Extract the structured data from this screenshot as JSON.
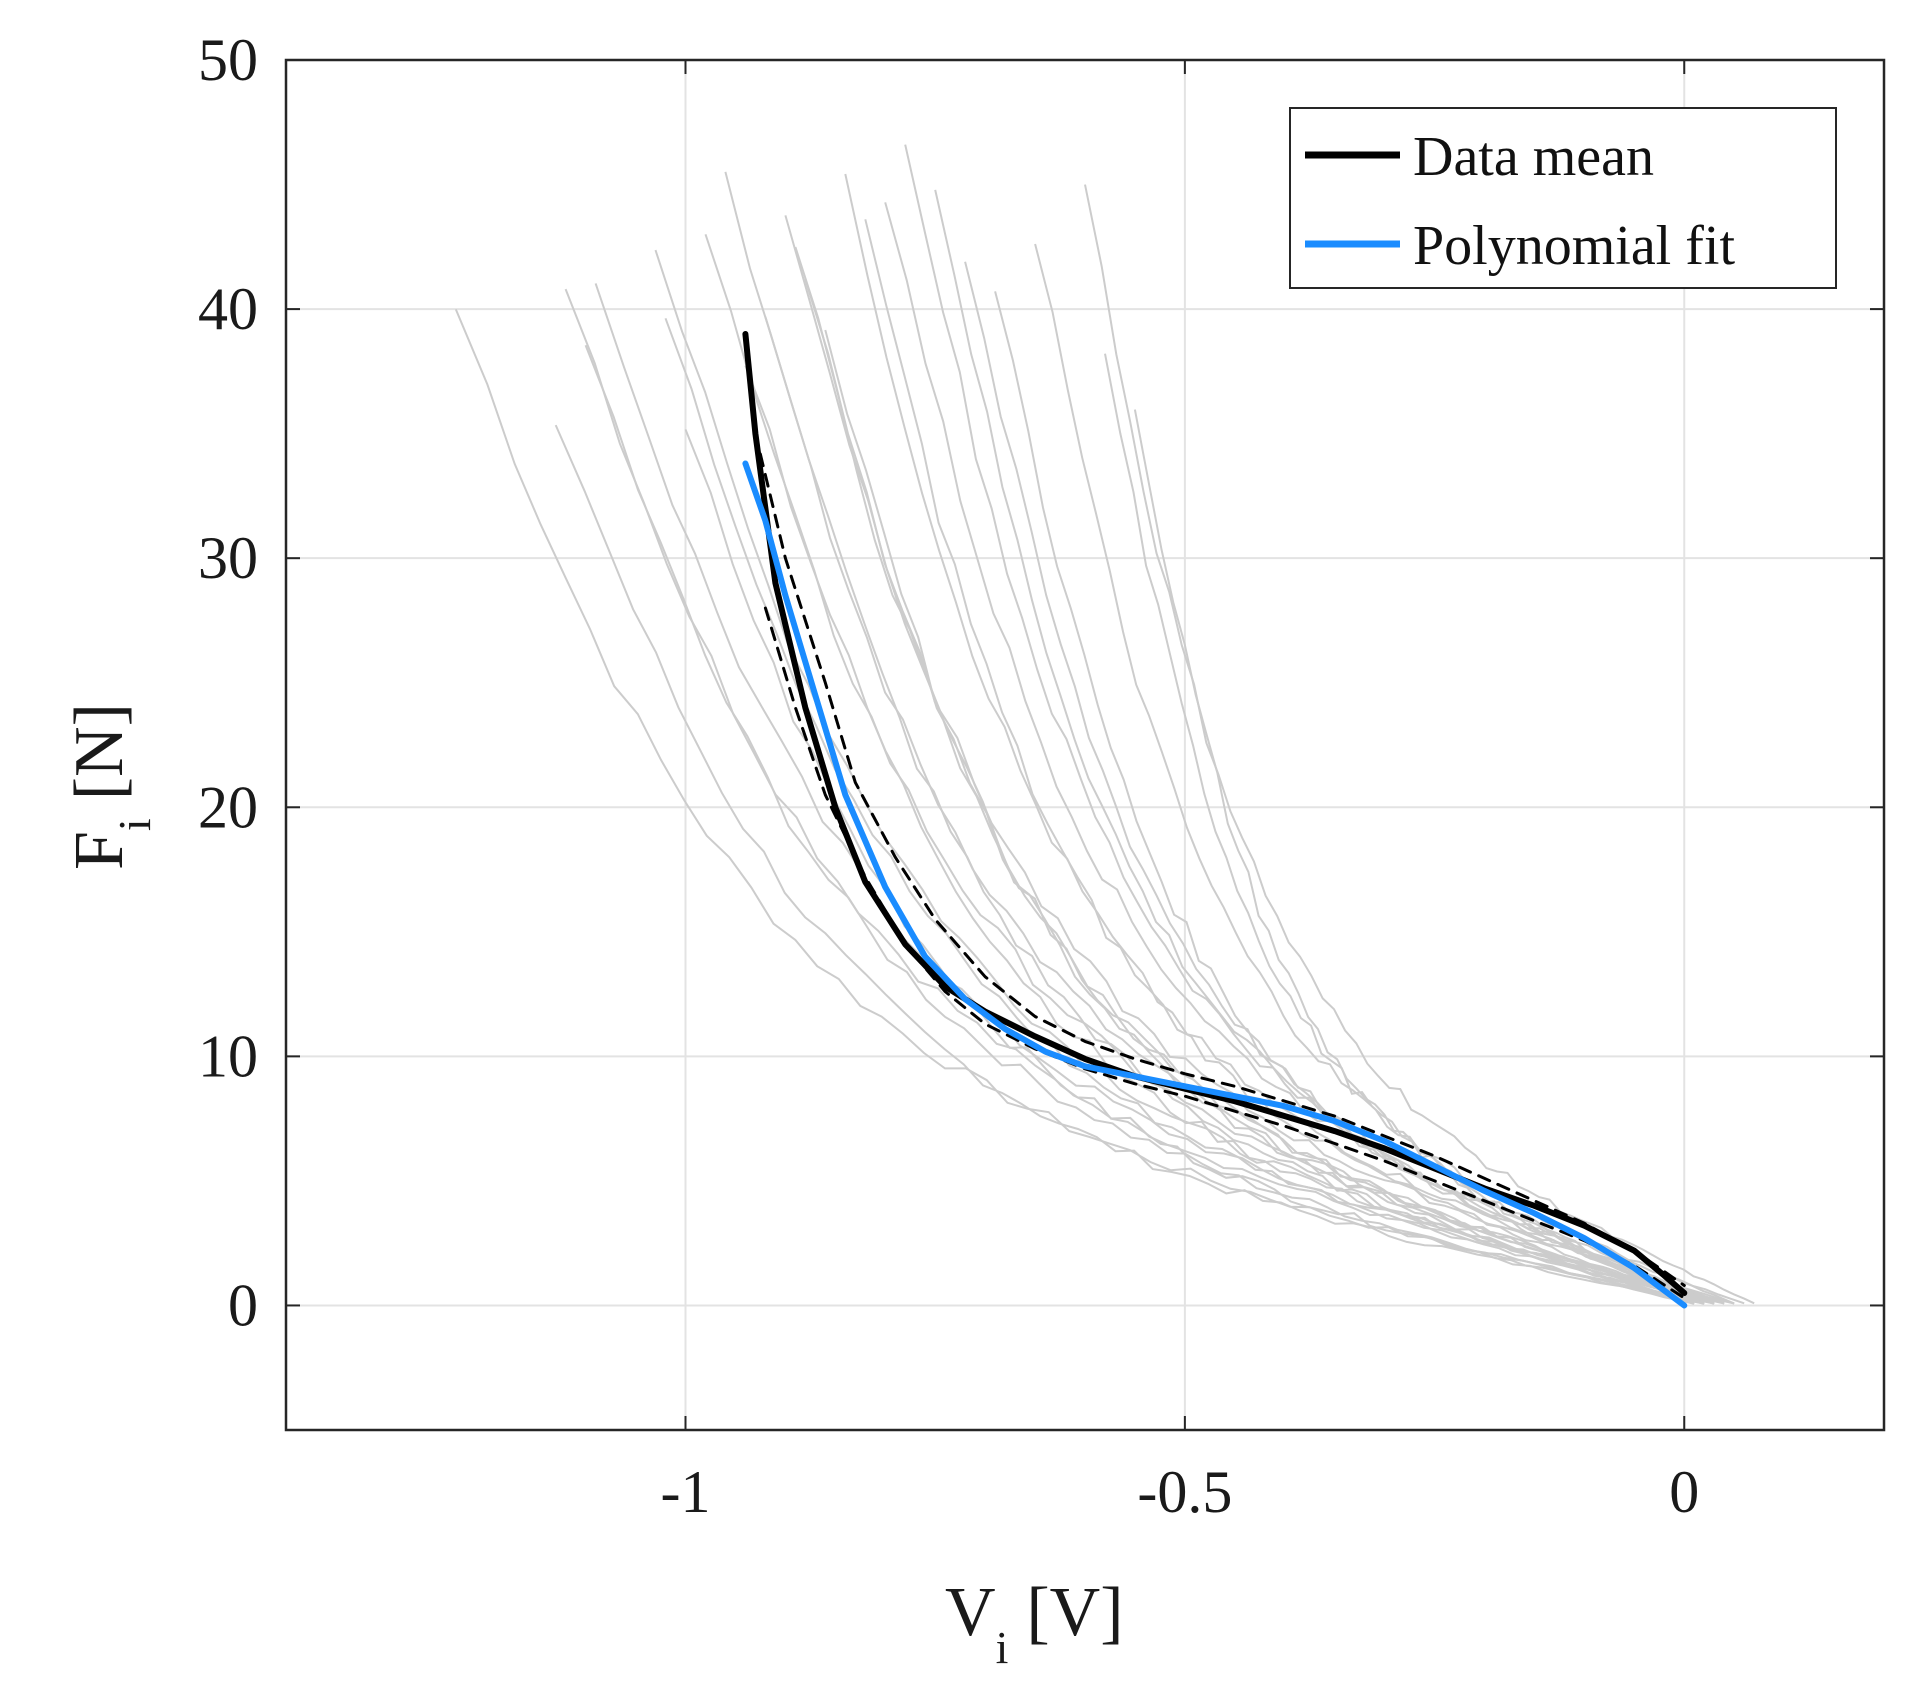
{
  "chart_data": {
    "type": "line",
    "title": "",
    "xlabel": {
      "main": "V",
      "sub": "i",
      "unit": "[V]"
    },
    "ylabel": {
      "main": "F",
      "sub": "i",
      "unit": "[N]"
    },
    "xlim": [
      -1.4,
      0.2
    ],
    "ylim": [
      -5,
      50
    ],
    "grid": true,
    "legend_position": "top-right",
    "x_ticks": [
      {
        "value": -1,
        "label": "-1"
      },
      {
        "value": -0.5,
        "label": "-0.5"
      },
      {
        "value": 0,
        "label": "0"
      }
    ],
    "y_ticks": [
      {
        "value": 0,
        "label": "0"
      },
      {
        "value": 10,
        "label": "10"
      },
      {
        "value": 20,
        "label": "20"
      },
      {
        "value": 30,
        "label": "30"
      },
      {
        "value": 40,
        "label": "40"
      },
      {
        "value": 50,
        "label": "50"
      }
    ],
    "legend": [
      {
        "name": "Data mean",
        "color": "#000000"
      },
      {
        "name": "Polynomial fit",
        "color": "#1a8cff"
      }
    ],
    "series": [
      {
        "name": "Data mean",
        "color": "#000000",
        "style": "solid",
        "in_legend": true,
        "points": [
          [
            -0.94,
            39
          ],
          [
            -0.93,
            35
          ],
          [
            -0.91,
            29
          ],
          [
            -0.88,
            24
          ],
          [
            -0.85,
            20
          ],
          [
            -0.82,
            17
          ],
          [
            -0.78,
            14.5
          ],
          [
            -0.74,
            12.8
          ],
          [
            -0.7,
            11.8
          ],
          [
            -0.65,
            10.8
          ],
          [
            -0.6,
            9.9
          ],
          [
            -0.55,
            9.2
          ],
          [
            -0.5,
            8.7
          ],
          [
            -0.45,
            8.2
          ],
          [
            -0.4,
            7.6
          ],
          [
            -0.35,
            7
          ],
          [
            -0.3,
            6.3
          ],
          [
            -0.25,
            5.5
          ],
          [
            -0.2,
            4.7
          ],
          [
            -0.15,
            4
          ],
          [
            -0.1,
            3.2
          ],
          [
            -0.05,
            2.2
          ],
          [
            -0.02,
            1.2
          ],
          [
            0,
            0.5
          ]
        ]
      },
      {
        "name": "Polynomial fit",
        "color": "#1a8cff",
        "style": "solid",
        "in_legend": true,
        "points": [
          [
            -0.94,
            33.8
          ],
          [
            -0.92,
            31.5
          ],
          [
            -0.9,
            28.5
          ],
          [
            -0.87,
            24.5
          ],
          [
            -0.84,
            20.5
          ],
          [
            -0.8,
            16.8
          ],
          [
            -0.76,
            14
          ],
          [
            -0.72,
            12.3
          ],
          [
            -0.68,
            11.1
          ],
          [
            -0.64,
            10.2
          ],
          [
            -0.6,
            9.6
          ],
          [
            -0.55,
            9.2
          ],
          [
            -0.5,
            8.8
          ],
          [
            -0.45,
            8.4
          ],
          [
            -0.4,
            8
          ],
          [
            -0.35,
            7.4
          ],
          [
            -0.3,
            6.6
          ],
          [
            -0.25,
            5.6
          ],
          [
            -0.2,
            4.6
          ],
          [
            -0.15,
            3.7
          ],
          [
            -0.1,
            2.7
          ],
          [
            -0.05,
            1.5
          ],
          [
            0,
            0
          ]
        ]
      },
      {
        "name": "Upper bound",
        "color": "#000000",
        "style": "dashed",
        "in_legend": false,
        "points": [
          [
            -0.93,
            35
          ],
          [
            -0.9,
            30
          ],
          [
            -0.86,
            25
          ],
          [
            -0.83,
            21
          ],
          [
            -0.79,
            18
          ],
          [
            -0.75,
            15.5
          ],
          [
            -0.7,
            13.2
          ],
          [
            -0.65,
            11.6
          ],
          [
            -0.6,
            10.6
          ],
          [
            -0.55,
            9.9
          ],
          [
            -0.5,
            9.3
          ],
          [
            -0.45,
            8.8
          ],
          [
            -0.4,
            8.2
          ],
          [
            -0.35,
            7.6
          ],
          [
            -0.3,
            6.8
          ],
          [
            -0.25,
            6
          ],
          [
            -0.2,
            5.1
          ],
          [
            -0.15,
            4.2
          ],
          [
            -0.1,
            3.3
          ],
          [
            -0.05,
            2.2
          ],
          [
            0,
            0.8
          ]
        ]
      },
      {
        "name": "Lower bound",
        "color": "#000000",
        "style": "dashed",
        "in_legend": false,
        "points": [
          [
            -0.92,
            28
          ],
          [
            -0.89,
            24
          ],
          [
            -0.86,
            20.5
          ],
          [
            -0.82,
            17.2
          ],
          [
            -0.78,
            14.5
          ],
          [
            -0.74,
            12.6
          ],
          [
            -0.7,
            11.3
          ],
          [
            -0.65,
            10.3
          ],
          [
            -0.6,
            9.5
          ],
          [
            -0.55,
            8.9
          ],
          [
            -0.5,
            8.4
          ],
          [
            -0.45,
            7.8
          ],
          [
            -0.4,
            7.2
          ],
          [
            -0.35,
            6.5
          ],
          [
            -0.3,
            5.8
          ],
          [
            -0.25,
            5
          ],
          [
            -0.2,
            4.2
          ],
          [
            -0.15,
            3.4
          ],
          [
            -0.1,
            2.6
          ],
          [
            -0.05,
            1.6
          ],
          [
            0,
            0.3
          ]
        ]
      }
    ],
    "trials": {
      "name": "Individual trials",
      "color": "#cccccc",
      "in_legend": false,
      "curves": [
        {
          "start": [
            -1.23,
            40
          ],
          "ends": 0.03
        },
        {
          "start": [
            -1.13,
            35.5
          ],
          "ends": 0.02
        },
        {
          "start": [
            -1.12,
            41
          ],
          "ends": 0.04
        },
        {
          "start": [
            -1.1,
            38.5
          ],
          "ends": 0.02
        },
        {
          "start": [
            -1.09,
            41
          ],
          "ends": 0.05
        },
        {
          "start": [
            -1.03,
            42.5
          ],
          "ends": 0.03
        },
        {
          "start": [
            -1.02,
            40
          ],
          "ends": 0.02
        },
        {
          "start": [
            -1.0,
            35
          ],
          "ends": 0.01
        },
        {
          "start": [
            -0.98,
            43
          ],
          "ends": 0.04
        },
        {
          "start": [
            -0.96,
            45.5
          ],
          "ends": 0.02
        },
        {
          "start": [
            -0.94,
            38
          ],
          "ends": 0.03
        },
        {
          "start": [
            -0.92,
            40
          ],
          "ends": 0.01
        },
        {
          "start": [
            -0.9,
            44
          ],
          "ends": 0.05
        },
        {
          "start": [
            -0.89,
            42.5
          ],
          "ends": 0.02
        },
        {
          "start": [
            -0.88,
            41
          ],
          "ends": 0.03
        },
        {
          "start": [
            -0.86,
            39
          ],
          "ends": 0.01
        },
        {
          "start": [
            -0.84,
            45
          ],
          "ends": 0.04
        },
        {
          "start": [
            -0.82,
            43.5
          ],
          "ends": 0.02
        },
        {
          "start": [
            -0.8,
            44.5
          ],
          "ends": 0.06
        },
        {
          "start": [
            -0.78,
            47
          ],
          "ends": 0.03
        },
        {
          "start": [
            -0.75,
            45
          ],
          "ends": 0.02
        },
        {
          "start": [
            -0.72,
            42
          ],
          "ends": 0.04
        },
        {
          "start": [
            -0.69,
            41
          ],
          "ends": 0.02
        },
        {
          "start": [
            -0.65,
            43
          ],
          "ends": 0.05
        },
        {
          "start": [
            -0.6,
            45
          ],
          "ends": 0.07
        },
        {
          "start": [
            -0.58,
            38
          ],
          "ends": 0.03
        },
        {
          "start": [
            -0.55,
            36
          ],
          "ends": 0.02
        }
      ]
    }
  }
}
